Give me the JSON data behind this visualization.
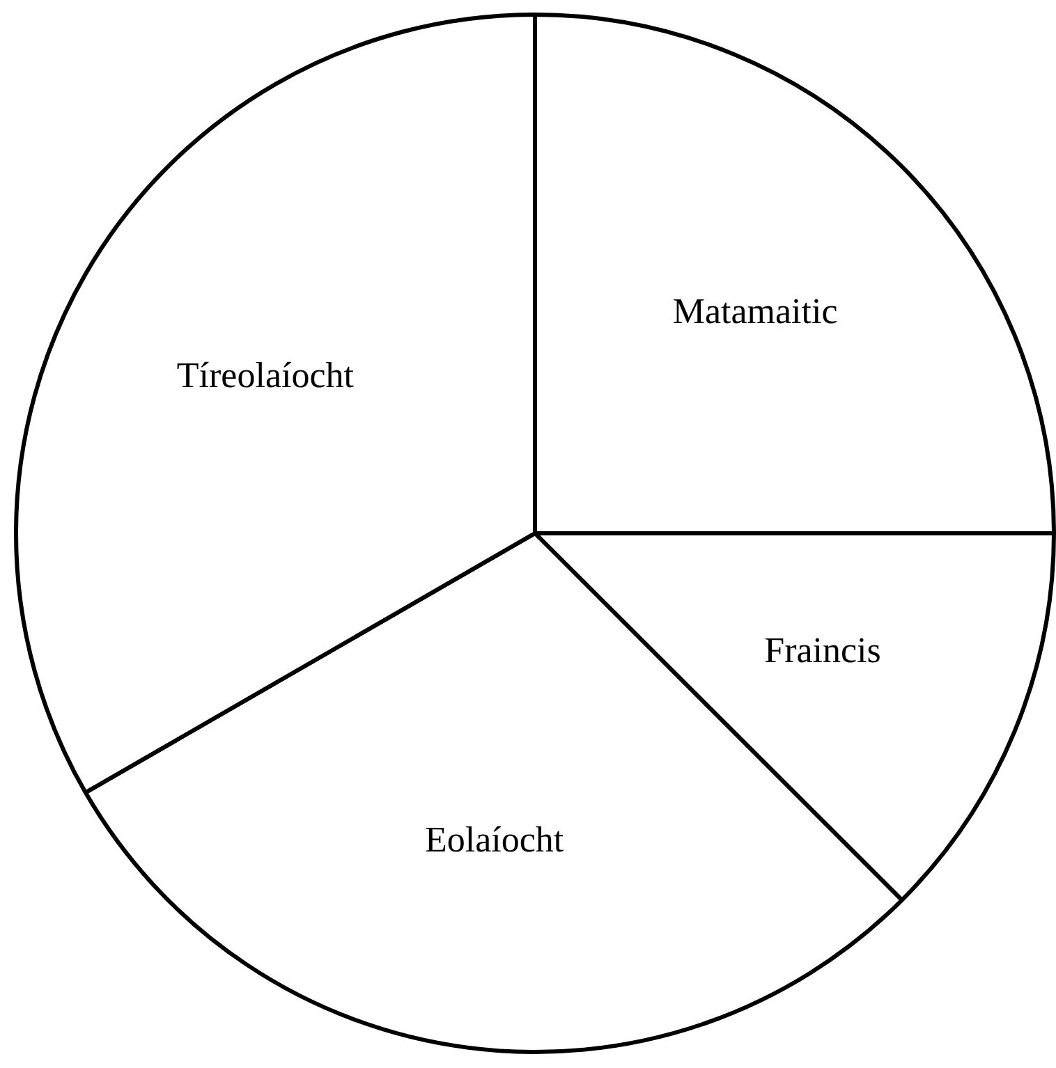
{
  "chart_data": {
    "type": "pie",
    "categories": [
      "Matamaitic",
      "Fraincis",
      "Eolaíocht",
      "Tíreolaíocht"
    ],
    "values": [
      25,
      12.5,
      29.17,
      33.33
    ],
    "colors": [
      "#ffffff",
      "#ffffff",
      "#ffffff",
      "#ffffff"
    ],
    "legend": false
  }
}
